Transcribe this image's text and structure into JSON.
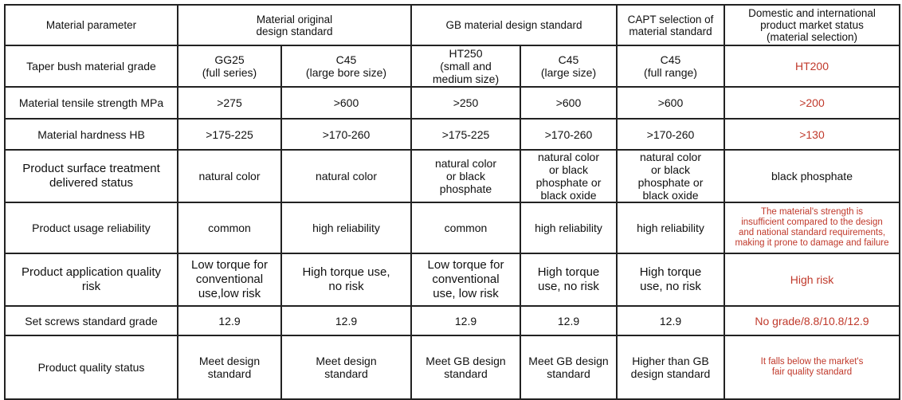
{
  "header": {
    "parameter": "Material parameter",
    "original": "Material original\ndesign standard",
    "gb": "GB material design standard",
    "capt": "CAPT selection of\nmaterial standard",
    "market": "Domestic and international\nproduct market status\n(material selection)"
  },
  "rows": [
    {
      "label": "Taper bush material grade",
      "cells": [
        "GG25\n(full series)",
        "C45\n(large bore size)",
        "HT250\n(small and\nmedium size)",
        "C45\n(large size)",
        "C45\n(full range)",
        "HT200"
      ]
    },
    {
      "label": "Material tensile strength MPa",
      "cells": [
        ">275",
        ">600",
        ">250",
        ">600",
        ">600",
        ">200"
      ]
    },
    {
      "label": "Material hardness HB",
      "cells": [
        ">175-225",
        ">170-260",
        ">175-225",
        ">170-260",
        ">170-260",
        ">130"
      ]
    },
    {
      "label": "Product surface treatment\ndelivered status",
      "cells": [
        "natural color",
        "natural color",
        "natural color\nor black\nphosphate",
        "natural color\nor black\nphosphate or\nblack oxide",
        "natural color\nor black\nphosphate or\nblack oxide",
        "black phosphate"
      ]
    },
    {
      "label": "Product usage reliability",
      "cells": [
        "common",
        "high reliability",
        "common",
        "high reliability",
        "high reliability",
        "The material's strength is\ninsufficient compared to the design\nand national standard requirements,\nmaking it prone to damage and failure"
      ]
    },
    {
      "label": "Product application quality\nrisk",
      "cells": [
        "Low torque for\nconventional\nuse,low risk",
        "High torque use,\nno risk",
        "Low torque for\nconventional\nuse, low risk",
        "High torque\nuse, no risk",
        "High torque\nuse, no risk",
        "High risk"
      ]
    },
    {
      "label": "Set screws standard grade",
      "cells": [
        "12.9",
        "12.9",
        "12.9",
        "12.9",
        "12.9",
        "No grade/8.8/10.8/12.9"
      ]
    },
    {
      "label": "Product quality status",
      "cells": [
        "Meet design\nstandard",
        "Meet design\nstandard",
        "Meet GB design\nstandard",
        "Meet GB design\nstandard",
        "Higher than  GB\ndesign standard",
        "It falls below the market's\nfair quality standard"
      ]
    }
  ],
  "colors": {
    "text": "#111111",
    "highlight": "#c0392b",
    "border": "#222222"
  }
}
